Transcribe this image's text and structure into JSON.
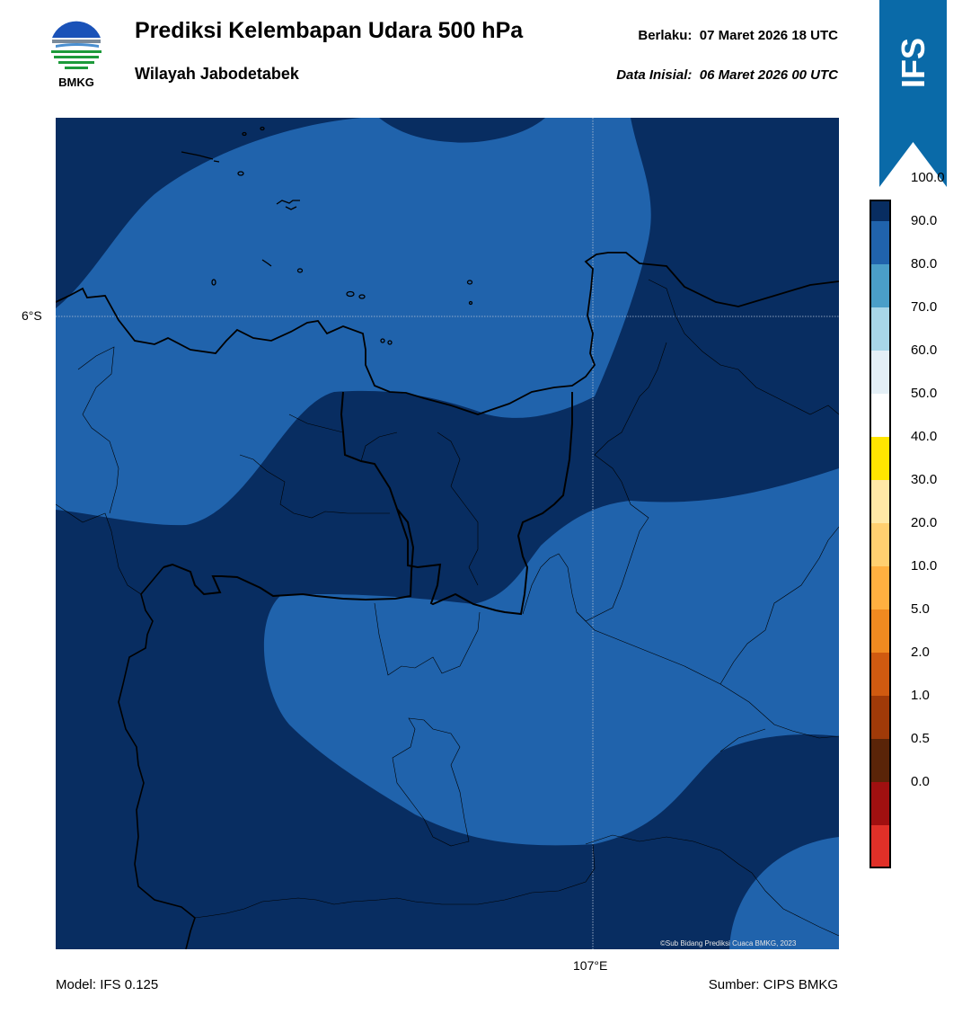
{
  "header": {
    "title": "Prediksi Kelembapan Udara 500 hPa",
    "subtitle": "Wilayah Jabodetabek",
    "valid_label": "Berlaku:",
    "valid_time": "07 Maret 2026 18 UTC",
    "init_label": "Data Inisial:",
    "init_time": "06 Maret 2026 00 UTC"
  },
  "logo": {
    "text": "BMKG"
  },
  "badge": {
    "text": "IFS",
    "color": "#0a6aa8"
  },
  "map": {
    "lat_label": "6°S",
    "lon_label": "107°E",
    "copyright": "©Sub Bidang Prediksi Cuaca BMKG, 2023",
    "dark_fill": "#082d61",
    "light_fill": "#2063ac"
  },
  "footer": {
    "model": "Model: IFS 0.125",
    "source": "Sumber: CIPS BMKG"
  },
  "colorbar": {
    "tick_labels": [
      "100.0",
      "90.0",
      "80.0",
      "70.0",
      "60.0",
      "50.0",
      "40.0",
      "30.0",
      "20.0",
      "10.0",
      "5.0",
      "2.0",
      "1.0",
      "0.5",
      "0.0"
    ],
    "colors_top_to_bottom": [
      "#2e0a5a",
      "#082d61",
      "#2063ac",
      "#4a9ec8",
      "#a8d6e8",
      "#e4eff6",
      "#ffffff",
      "#ffe500",
      "#ffe9a6",
      "#ffd070",
      "#ffb040",
      "#f08a20",
      "#d05a10",
      "#a03a08",
      "#5a2408",
      "#a01010",
      "#e03028"
    ]
  }
}
